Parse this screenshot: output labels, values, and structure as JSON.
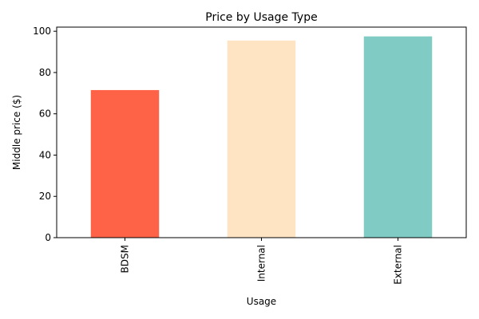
{
  "chart_data": {
    "type": "bar",
    "title": "Price by Usage Type",
    "xlabel": "Usage",
    "ylabel": "Middle price ($)",
    "categories": [
      "BDSM",
      "Internal",
      "External"
    ],
    "values": [
      71.5,
      95.5,
      97.5
    ],
    "colors": [
      "#ff6347",
      "#ffe4c4",
      "#80cbc4"
    ],
    "ylim": [
      0,
      102
    ],
    "yticks": [
      0,
      20,
      40,
      60,
      80,
      100
    ],
    "grid": false,
    "legend": "none"
  }
}
